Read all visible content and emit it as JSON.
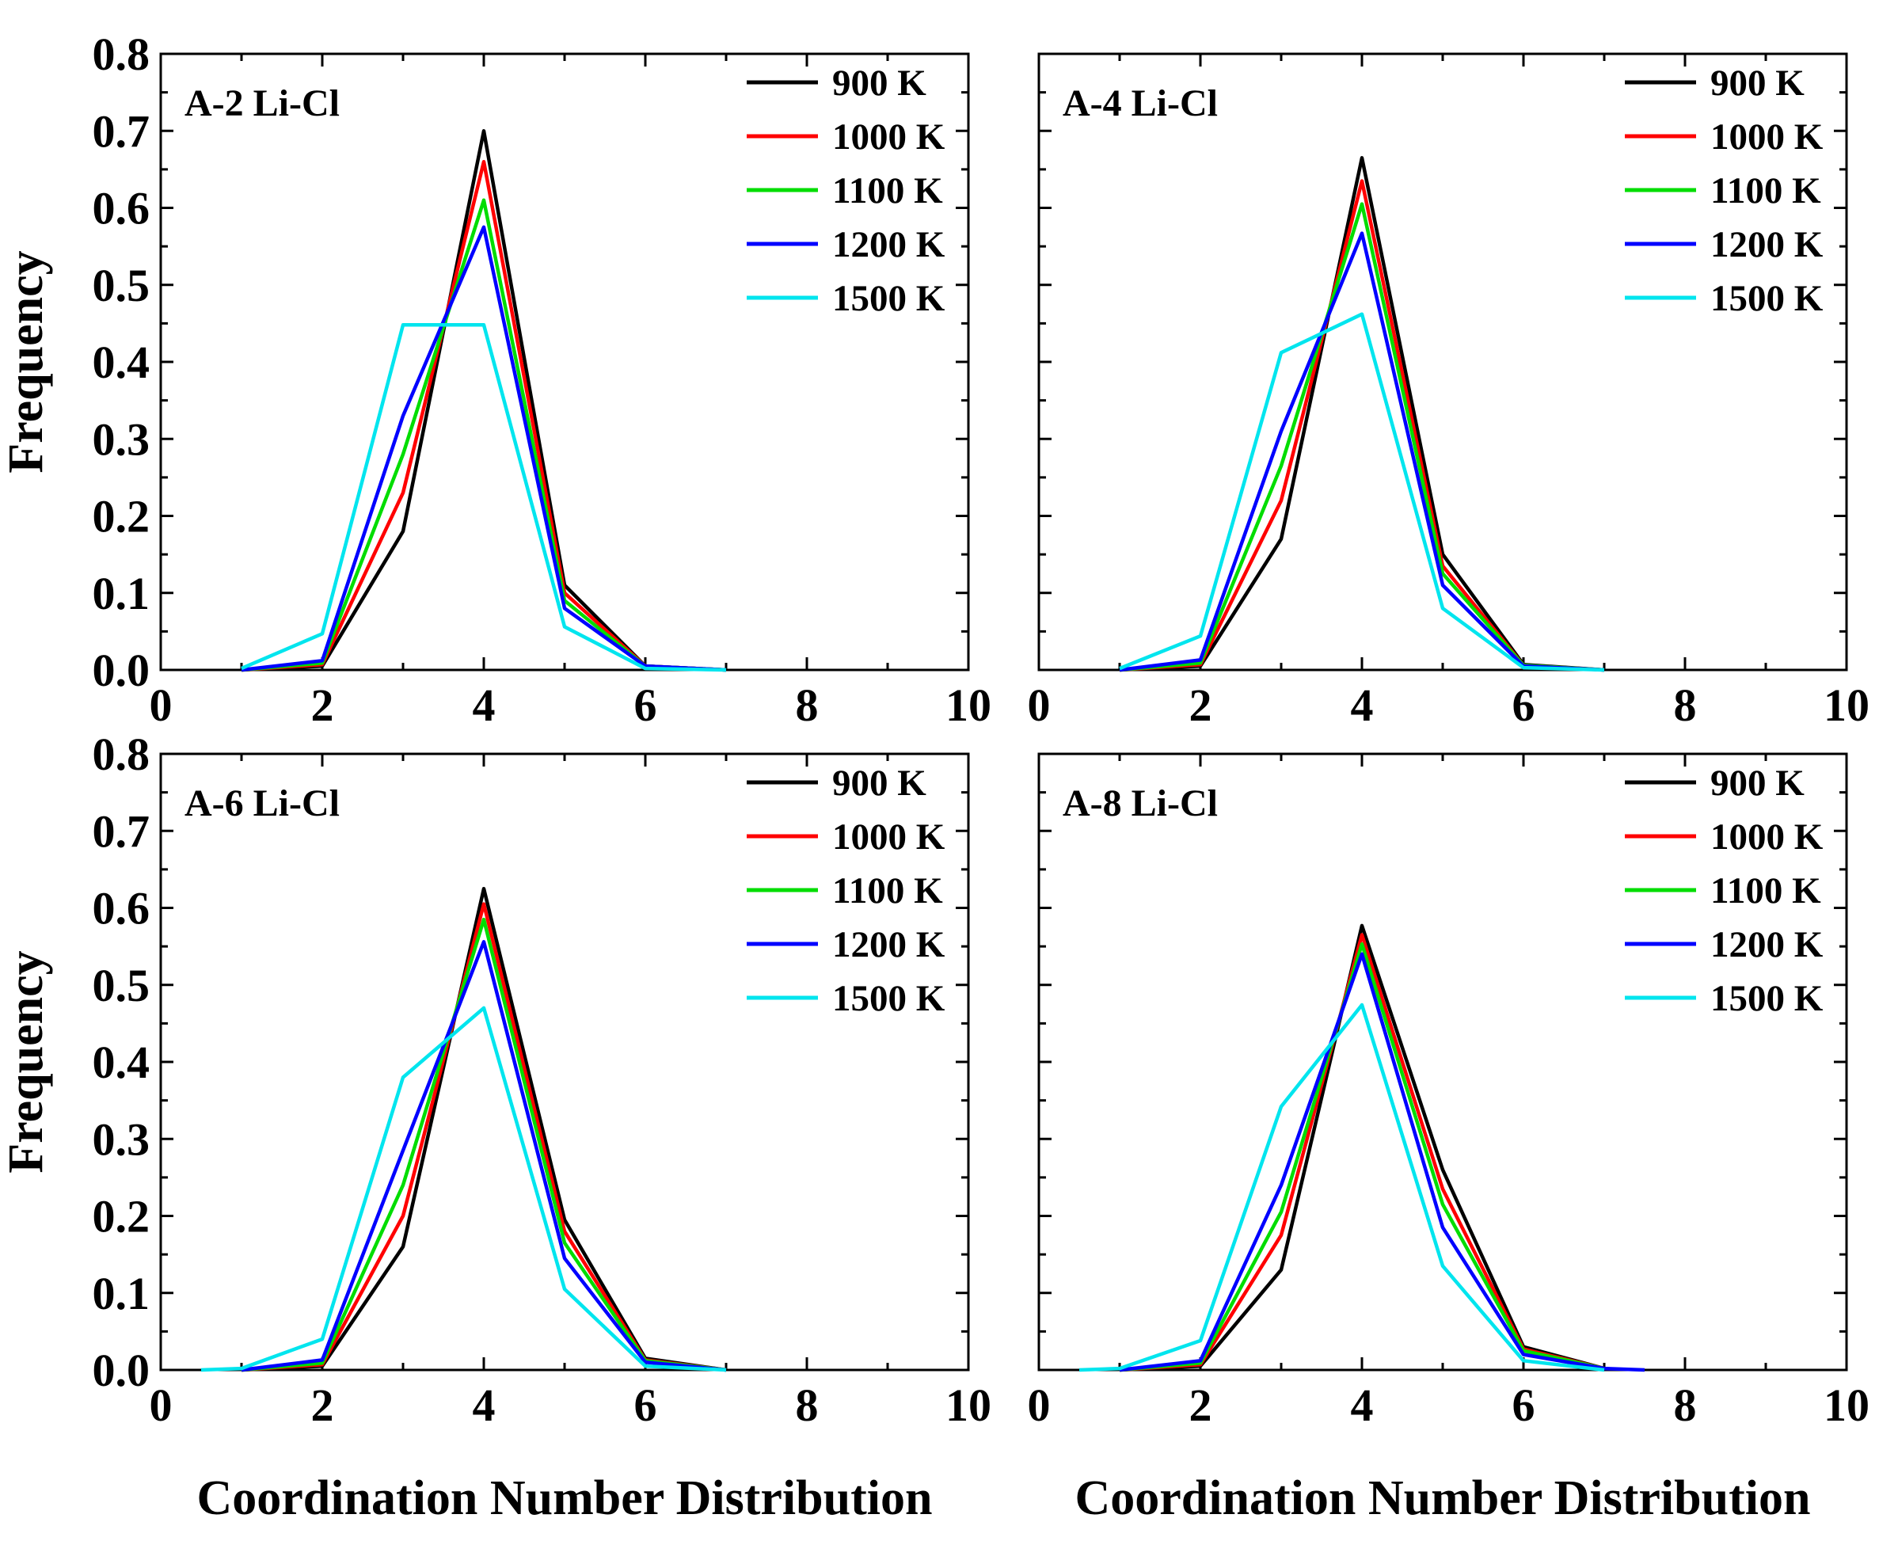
{
  "chart_data": [
    {
      "type": "line",
      "panel_label": "A-2 Li-Cl",
      "x_ticks": [
        "0",
        "2",
        "4",
        "6",
        "8",
        "10"
      ],
      "y_ticks": [
        "0.0",
        "0.1",
        "0.2",
        "0.3",
        "0.4",
        "0.5",
        "0.6",
        "0.7",
        "0.8"
      ],
      "xlim": [
        0,
        10
      ],
      "ylim": [
        0,
        0.8
      ],
      "ylabel": "Frequency",
      "xlabel": "Coordination Number Distribution",
      "series": [
        {
          "name": "900 K",
          "color": "#000000",
          "x": [
            1,
            2,
            3,
            4,
            5,
            6,
            7
          ],
          "y": [
            0.0,
            0.005,
            0.18,
            0.7,
            0.11,
            0.005,
            0.0
          ]
        },
        {
          "name": "1000 K",
          "color": "#ff0000",
          "x": [
            1,
            2,
            3,
            4,
            5,
            6,
            7
          ],
          "y": [
            0.0,
            0.007,
            0.23,
            0.66,
            0.1,
            0.005,
            0.0
          ]
        },
        {
          "name": "1100 K",
          "color": "#00dd00",
          "x": [
            1,
            2,
            3,
            4,
            5,
            6,
            7
          ],
          "y": [
            0.0,
            0.009,
            0.28,
            0.61,
            0.09,
            0.005,
            0.0
          ]
        },
        {
          "name": "1200 K",
          "color": "#0000ff",
          "x": [
            1,
            2,
            3,
            4,
            5,
            6,
            7
          ],
          "y": [
            0.0,
            0.012,
            0.33,
            0.575,
            0.08,
            0.005,
            0.0
          ]
        },
        {
          "name": "1500 K",
          "color": "#00e5ee",
          "x": [
            1,
            2,
            3,
            4,
            5,
            6,
            7
          ],
          "y": [
            0.002,
            0.047,
            0.448,
            0.448,
            0.056,
            0.002,
            0.0
          ]
        }
      ]
    },
    {
      "type": "line",
      "panel_label": "A-4 Li-Cl",
      "x_ticks": [
        "0",
        "2",
        "4",
        "6",
        "8",
        "10"
      ],
      "y_ticks": [],
      "xlim": [
        0,
        10
      ],
      "ylim": [
        0,
        0.8
      ],
      "ylabel": "",
      "xlabel": "Coordination Number Distribution",
      "series": [
        {
          "name": "900 K",
          "color": "#000000",
          "x": [
            1,
            2,
            3,
            4,
            5,
            6,
            7
          ],
          "y": [
            0.0,
            0.005,
            0.17,
            0.665,
            0.15,
            0.007,
            0.0
          ]
        },
        {
          "name": "1000 K",
          "color": "#ff0000",
          "x": [
            1,
            2,
            3,
            4,
            5,
            6,
            7
          ],
          "y": [
            0.0,
            0.007,
            0.22,
            0.635,
            0.135,
            0.006,
            0.0
          ]
        },
        {
          "name": "1100 K",
          "color": "#00dd00",
          "x": [
            1,
            2,
            3,
            4,
            5,
            6,
            7
          ],
          "y": [
            0.0,
            0.009,
            0.265,
            0.605,
            0.125,
            0.006,
            0.0
          ]
        },
        {
          "name": "1200 K",
          "color": "#0000ff",
          "x": [
            1,
            2,
            3,
            4,
            5,
            6,
            7
          ],
          "y": [
            0.0,
            0.013,
            0.31,
            0.567,
            0.11,
            0.005,
            0.0
          ]
        },
        {
          "name": "1500 K",
          "color": "#00e5ee",
          "x": [
            1,
            2,
            3,
            4,
            5,
            6,
            7
          ],
          "y": [
            0.002,
            0.044,
            0.412,
            0.462,
            0.08,
            0.003,
            0.0
          ]
        }
      ]
    },
    {
      "type": "line",
      "panel_label": "A-6 Li-Cl",
      "x_ticks": [
        "0",
        "2",
        "4",
        "6",
        "8",
        "10"
      ],
      "y_ticks": [
        "0.0",
        "0.1",
        "0.2",
        "0.3",
        "0.4",
        "0.5",
        "0.6",
        "0.7",
        "0.8"
      ],
      "xlim": [
        0,
        10
      ],
      "ylim": [
        0,
        0.8
      ],
      "ylabel": "Frequency",
      "xlabel": "Coordination Number Distribution",
      "series": [
        {
          "name": "900 K",
          "color": "#000000",
          "x": [
            1,
            2,
            3,
            4,
            5,
            6,
            7
          ],
          "y": [
            0.0,
            0.005,
            0.16,
            0.625,
            0.195,
            0.015,
            0.0
          ]
        },
        {
          "name": "1000 K",
          "color": "#ff0000",
          "x": [
            1,
            2,
            3,
            4,
            5,
            6,
            7
          ],
          "y": [
            0.0,
            0.007,
            0.2,
            0.605,
            0.18,
            0.013,
            0.0
          ]
        },
        {
          "name": "1100 K",
          "color": "#00dd00",
          "x": [
            1,
            2,
            3,
            4,
            5,
            6,
            7
          ],
          "y": [
            0.0,
            0.009,
            0.24,
            0.585,
            0.165,
            0.012,
            0.0
          ]
        },
        {
          "name": "1200 K",
          "color": "#0000ff",
          "x": [
            1,
            2,
            3,
            4,
            5,
            6,
            7
          ],
          "y": [
            0.0,
            0.013,
            0.285,
            0.556,
            0.145,
            0.01,
            0.0
          ]
        },
        {
          "name": "1500 K",
          "color": "#00e5ee",
          "x": [
            0.5,
            1,
            2,
            3,
            4,
            5,
            6,
            7
          ],
          "y": [
            0.0,
            0.002,
            0.04,
            0.38,
            0.47,
            0.105,
            0.005,
            0.0
          ]
        }
      ]
    },
    {
      "type": "line",
      "panel_label": "A-8 Li-Cl",
      "x_ticks": [
        "0",
        "2",
        "4",
        "6",
        "8",
        "10"
      ],
      "y_ticks": [],
      "xlim": [
        0,
        10
      ],
      "ylim": [
        0,
        0.8
      ],
      "ylabel": "",
      "xlabel": "Coordination Number Distribution",
      "series": [
        {
          "name": "900 K",
          "color": "#000000",
          "x": [
            1,
            2,
            3,
            4,
            5,
            6,
            7
          ],
          "y": [
            0.0,
            0.005,
            0.13,
            0.577,
            0.26,
            0.03,
            0.002
          ]
        },
        {
          "name": "1000 K",
          "color": "#ff0000",
          "x": [
            1,
            2,
            3,
            4,
            5,
            6,
            7
          ],
          "y": [
            0.0,
            0.007,
            0.175,
            0.565,
            0.235,
            0.027,
            0.002
          ]
        },
        {
          "name": "1100 K",
          "color": "#00dd00",
          "x": [
            1,
            2,
            3,
            4,
            5,
            6,
            7
          ],
          "y": [
            0.0,
            0.009,
            0.205,
            0.553,
            0.215,
            0.025,
            0.002
          ]
        },
        {
          "name": "1200 K",
          "color": "#0000ff",
          "x": [
            1,
            2,
            3,
            4,
            5,
            6,
            7,
            7.5
          ],
          "y": [
            0.0,
            0.012,
            0.24,
            0.54,
            0.185,
            0.02,
            0.002,
            0.0
          ]
        },
        {
          "name": "1500 K",
          "color": "#00e5ee",
          "x": [
            0.5,
            1,
            2,
            3,
            4,
            5,
            6,
            7
          ],
          "y": [
            0.0,
            0.002,
            0.038,
            0.342,
            0.474,
            0.135,
            0.012,
            0.0
          ]
        }
      ]
    }
  ]
}
